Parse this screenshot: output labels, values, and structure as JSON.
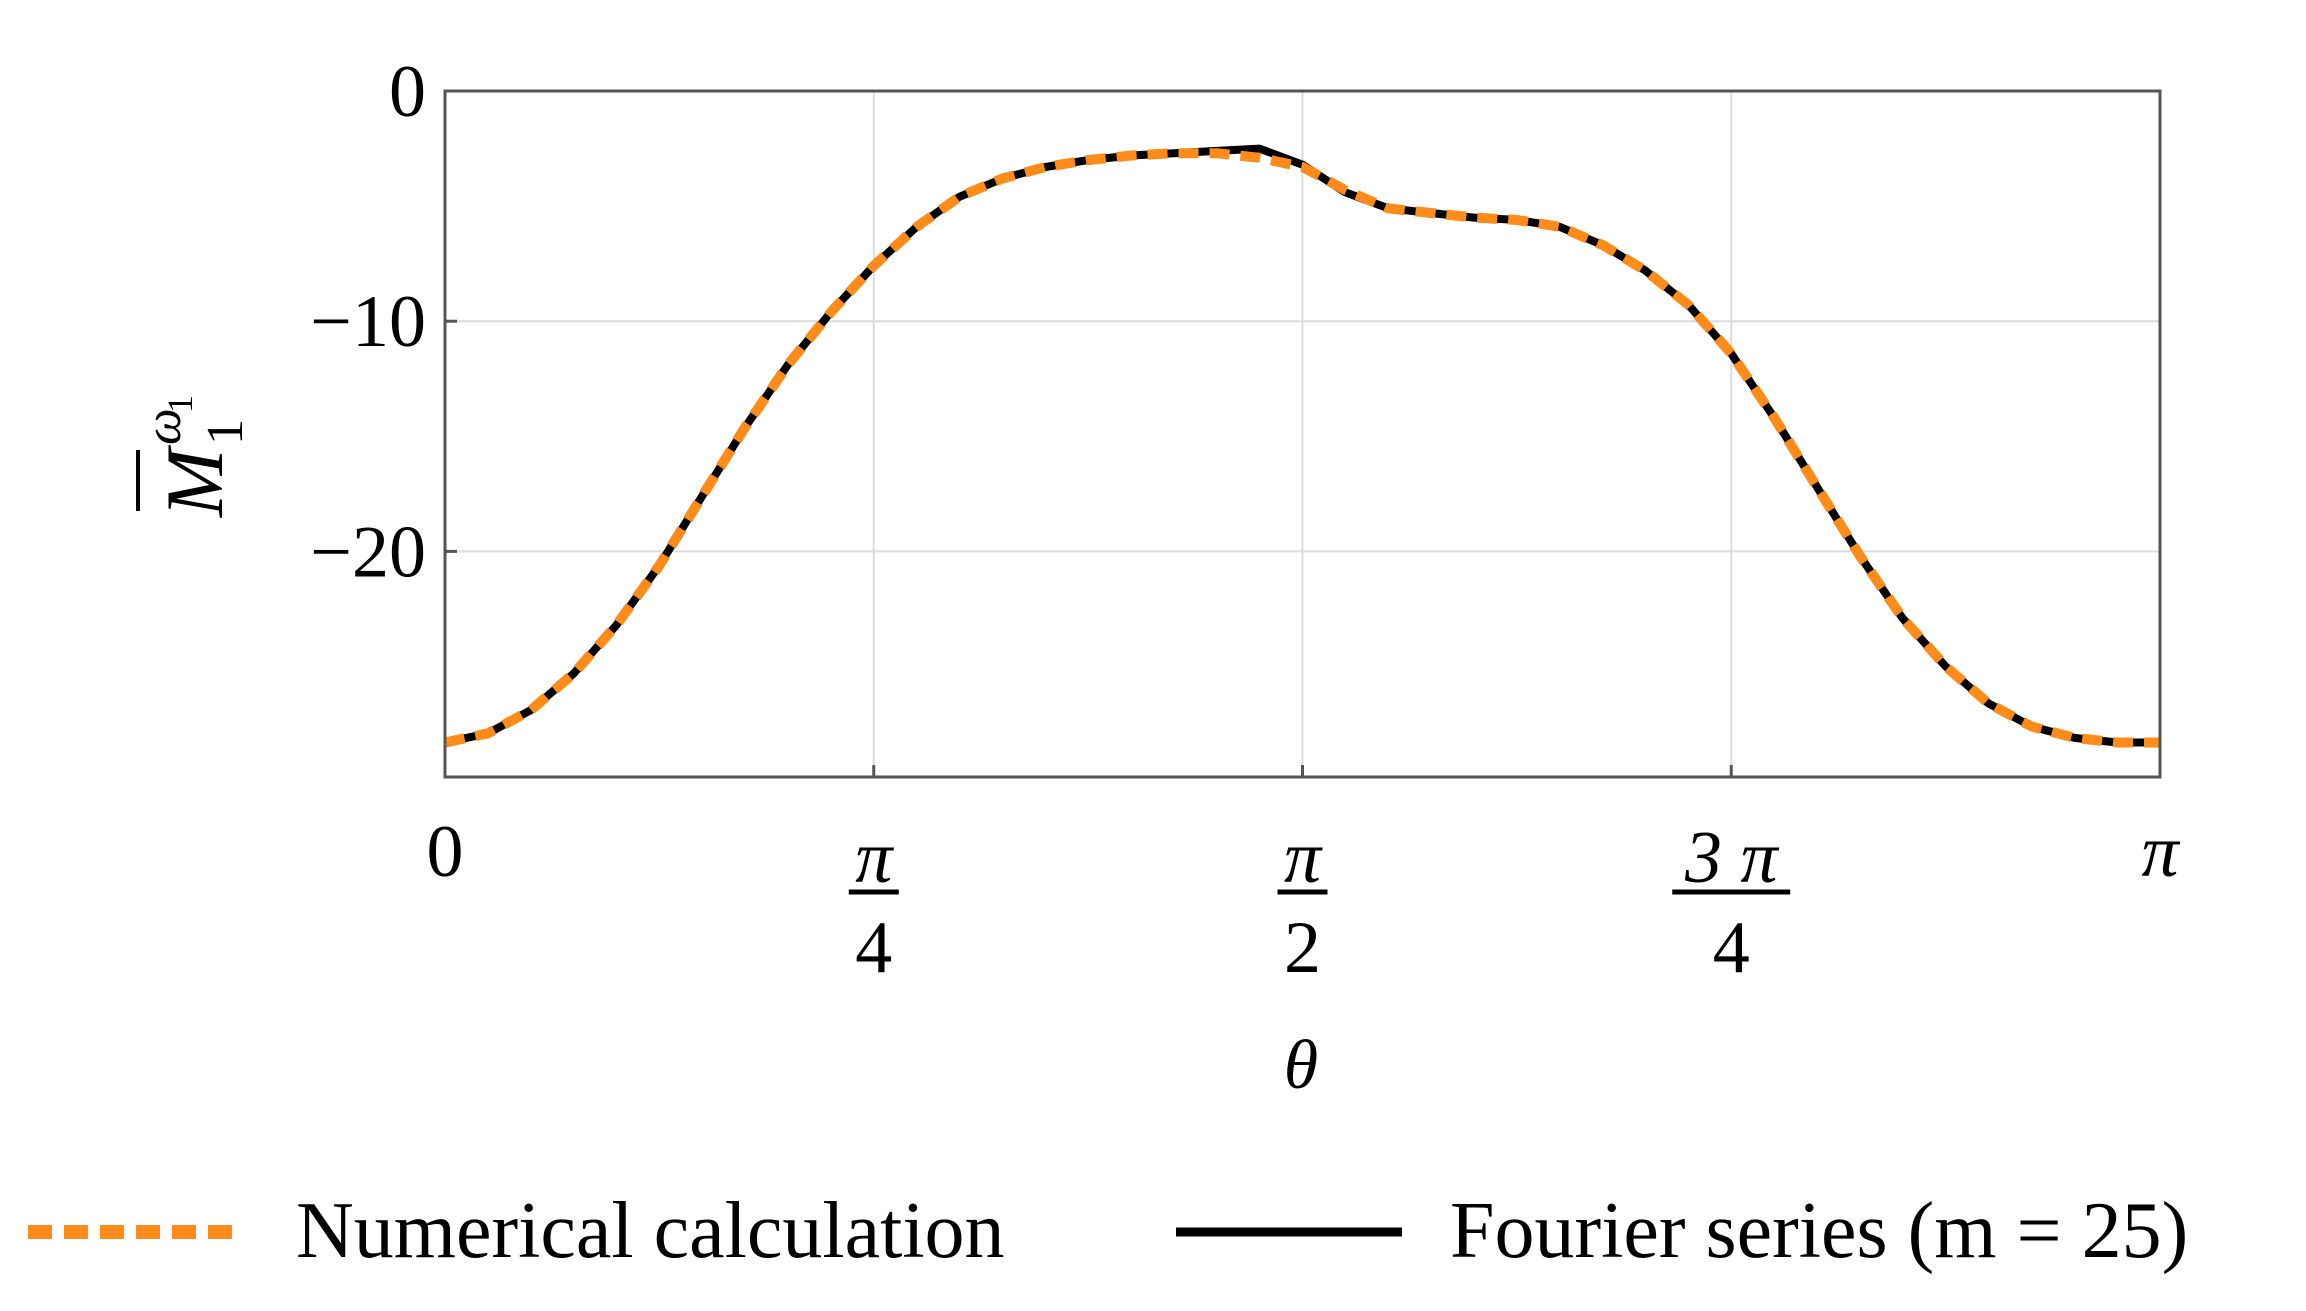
{
  "chart_data": {
    "type": "line",
    "title": "",
    "xlabel": "θ",
    "ylabel": {
      "base": "M",
      "sub": "1",
      "sup": "ω",
      "sup_sub": "1"
    },
    "xlim": [
      0,
      3.14159
    ],
    "ylim": [
      -29.8,
      0
    ],
    "grid": true,
    "x_ticks": [
      {
        "value": 0,
        "label": "0",
        "kind": "plain"
      },
      {
        "value": 0.7854,
        "num": "π",
        "den": "4",
        "kind": "fraction"
      },
      {
        "value": 1.5708,
        "num": "π",
        "den": "2",
        "kind": "fraction"
      },
      {
        "value": 2.3562,
        "num": "3 π",
        "den": "4",
        "kind": "fraction"
      },
      {
        "value": 3.14159,
        "label": "π",
        "kind": "italic"
      }
    ],
    "y_ticks": [
      {
        "value": 0,
        "label": "0"
      },
      {
        "value": -10,
        "label": "−10"
      },
      {
        "value": -20,
        "label": "−20"
      }
    ],
    "legend_position": "bottom",
    "series": [
      {
        "name": "Numerical calculation",
        "color": "#ff8c1a",
        "style": "dashed",
        "x": [
          0,
          0.079,
          0.157,
          0.236,
          0.314,
          0.393,
          0.471,
          0.55,
          0.628,
          0.707,
          0.785,
          0.864,
          0.942,
          1.021,
          1.1,
          1.178,
          1.257,
          1.335,
          1.414,
          1.492,
          1.571,
          1.649,
          1.728,
          1.806,
          1.885,
          1.963,
          2.042,
          2.121,
          2.199,
          2.278,
          2.356,
          2.435,
          2.513,
          2.592,
          2.67,
          2.749,
          2.827,
          2.906,
          2.985,
          3.063,
          3.142
        ],
        "values": [
          -28.3,
          -27.9,
          -26.9,
          -25.3,
          -23.2,
          -20.6,
          -17.6,
          -14.6,
          -11.9,
          -9.6,
          -7.6,
          -5.9,
          -4.6,
          -3.8,
          -3.3,
          -3.0,
          -2.8,
          -2.7,
          -2.7,
          -2.9,
          -3.3,
          -4.3,
          -5.1,
          -5.3,
          -5.5,
          -5.6,
          -5.9,
          -6.7,
          -7.8,
          -9.3,
          -11.4,
          -14.2,
          -17.2,
          -20.2,
          -22.9,
          -25.0,
          -26.6,
          -27.6,
          -28.1,
          -28.3,
          -28.3
        ]
      },
      {
        "name": "Fourier series (m = 25)",
        "color": "#000000",
        "style": "solid",
        "x": [
          0,
          0.079,
          0.157,
          0.236,
          0.314,
          0.393,
          0.471,
          0.55,
          0.628,
          0.707,
          0.785,
          0.864,
          0.942,
          1.021,
          1.1,
          1.178,
          1.257,
          1.335,
          1.414,
          1.492,
          1.571,
          1.649,
          1.728,
          1.806,
          1.885,
          1.963,
          2.042,
          2.121,
          2.199,
          2.278,
          2.356,
          2.435,
          2.513,
          2.592,
          2.67,
          2.749,
          2.827,
          2.906,
          2.985,
          3.063,
          3.142
        ],
        "values": [
          -28.3,
          -27.9,
          -26.9,
          -25.3,
          -23.2,
          -20.6,
          -17.6,
          -14.6,
          -11.9,
          -9.6,
          -7.6,
          -5.9,
          -4.6,
          -3.8,
          -3.3,
          -3.0,
          -2.8,
          -2.7,
          -2.6,
          -2.5,
          -3.2,
          -4.4,
          -5.1,
          -5.3,
          -5.5,
          -5.6,
          -5.9,
          -6.7,
          -7.8,
          -9.3,
          -11.4,
          -14.2,
          -17.2,
          -20.2,
          -22.9,
          -25.0,
          -26.6,
          -27.6,
          -28.1,
          -28.3,
          -28.3
        ]
      }
    ]
  }
}
